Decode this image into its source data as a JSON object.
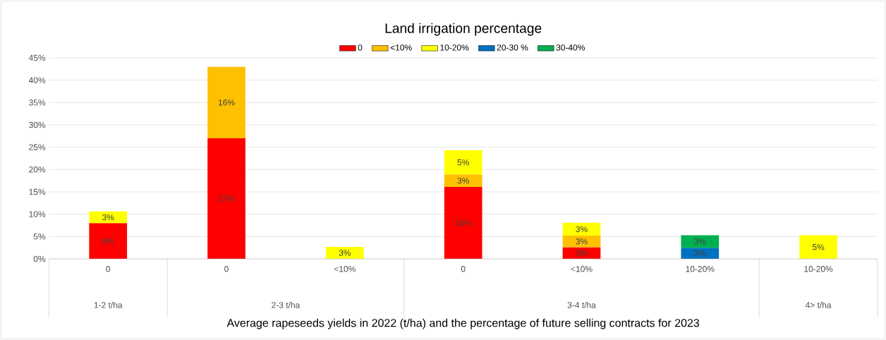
{
  "chart_data": {
    "type": "bar",
    "title": "Land irrigation percentage",
    "xlabel": "Average rapeseeds yields in 2022 (t/ha) and the percentage of future selling contracts for 2023",
    "categories": [
      "0",
      "0",
      "<10%",
      "0",
      "<10%",
      "10-20%",
      "10-20%"
    ],
    "stacked": true,
    "series": [
      {
        "name": "0",
        "color": "#ff0000",
        "values": [
          8,
          27,
          null,
          16.1,
          2.6,
          null,
          null
        ],
        "value_labels": [
          "8%",
          "27%",
          null,
          "16%",
          "3%",
          null,
          null
        ]
      },
      {
        "name": "<10%",
        "color": "#ffc000",
        "values": [
          null,
          16,
          null,
          2.8,
          2.6,
          null,
          null
        ],
        "value_labels": [
          null,
          "16%",
          null,
          "3%",
          "3%",
          null,
          null
        ]
      },
      {
        "name": "10-20%",
        "color": "#ffff00",
        "values": [
          2.6,
          null,
          2.7,
          5.4,
          2.9,
          null,
          5.3
        ],
        "value_labels": [
          "3%",
          null,
          "3%",
          "5%",
          "3%",
          null,
          "5%"
        ]
      },
      {
        "name": "20-30 %",
        "color": "#0070c0",
        "values": [
          null,
          null,
          null,
          null,
          null,
          2.5,
          null
        ],
        "value_labels": [
          null,
          null,
          null,
          null,
          null,
          "3%",
          null
        ]
      },
      {
        "name": "30-40%",
        "color": "#00b050",
        "values": [
          null,
          null,
          null,
          null,
          null,
          2.8,
          null
        ],
        "value_labels": [
          null,
          null,
          null,
          null,
          null,
          "3%",
          null
        ]
      }
    ],
    "annotations": [
      "1-2 t/ha",
      "2-3 t/ha",
      "3-4 t/ha",
      "4> t/ha"
    ],
    "ylim": [
      0,
      45
    ],
    "yticks": [
      {
        "value": 0,
        "label": "0%"
      },
      {
        "value": 5,
        "label": "5%"
      },
      {
        "value": 10,
        "label": "10%"
      },
      {
        "value": 15,
        "label": "15%"
      },
      {
        "value": 20,
        "label": "20%"
      },
      {
        "value": 25,
        "label": "25%"
      },
      {
        "value": 30,
        "label": "30%"
      },
      {
        "value": 35,
        "label": "35%"
      },
      {
        "value": 40,
        "label": "40%"
      },
      {
        "value": 45,
        "label": "45%"
      }
    ],
    "grid": "y",
    "legend": "top"
  }
}
